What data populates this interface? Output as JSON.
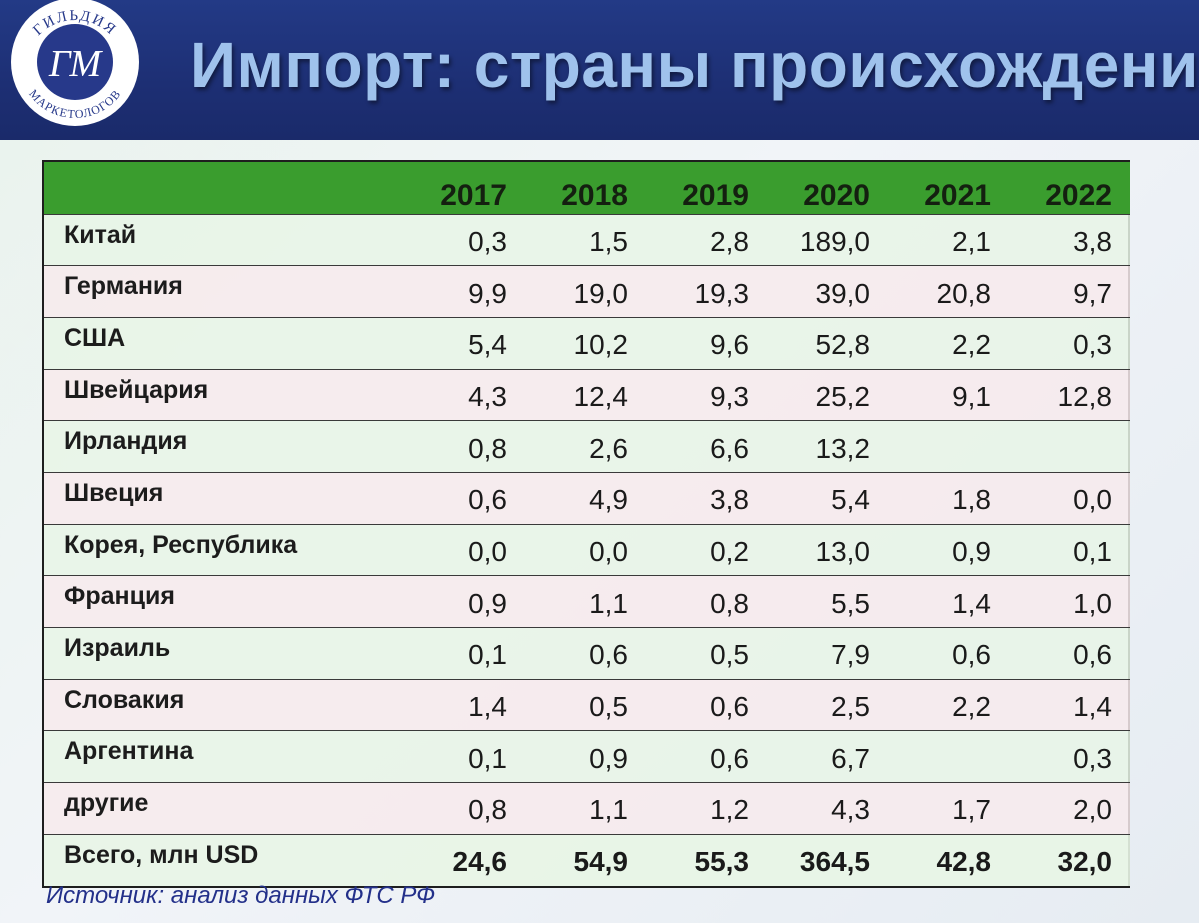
{
  "title": "Импорт: страны происхождения",
  "logo": {
    "arc_top": "ГИЛЬДИЯ",
    "arc_bottom": "МАРКЕТОЛОГОВ",
    "monogram": "ГМ"
  },
  "table": {
    "years": [
      "2017",
      "2018",
      "2019",
      "2020",
      "2021",
      "2022"
    ],
    "rows": [
      {
        "country": "Китай",
        "values": [
          "0,3",
          "1,5",
          "2,8",
          "189,0",
          "2,1",
          "3,8"
        ]
      },
      {
        "country": "Германия",
        "values": [
          "9,9",
          "19,0",
          "19,3",
          "39,0",
          "20,8",
          "9,7"
        ]
      },
      {
        "country": "США",
        "values": [
          "5,4",
          "10,2",
          "9,6",
          "52,8",
          "2,2",
          "0,3"
        ]
      },
      {
        "country": "Швейцария",
        "values": [
          "4,3",
          "12,4",
          "9,3",
          "25,2",
          "9,1",
          "12,8"
        ]
      },
      {
        "country": "Ирландия",
        "values": [
          "0,8",
          "2,6",
          "6,6",
          "13,2",
          "",
          ""
        ]
      },
      {
        "country": "Швеция",
        "values": [
          "0,6",
          "4,9",
          "3,8",
          "5,4",
          "1,8",
          "0,0"
        ]
      },
      {
        "country": "Корея, Республика",
        "values": [
          "0,0",
          "0,0",
          "0,2",
          "13,0",
          "0,9",
          "0,1"
        ]
      },
      {
        "country": "Франция",
        "values": [
          "0,9",
          "1,1",
          "0,8",
          "5,5",
          "1,4",
          "1,0"
        ]
      },
      {
        "country": "Израиль",
        "values": [
          "0,1",
          "0,6",
          "0,5",
          "7,9",
          "0,6",
          "0,6"
        ]
      },
      {
        "country": "Словакия",
        "values": [
          "1,4",
          "0,5",
          "0,6",
          "2,5",
          "2,2",
          "1,4"
        ]
      },
      {
        "country": "Аргентина",
        "values": [
          "0,1",
          "0,9",
          "0,6",
          "6,7",
          "",
          "0,3"
        ]
      },
      {
        "country": "другие",
        "values": [
          "0,8",
          "1,1",
          "1,2",
          "4,3",
          "1,7",
          "2,0"
        ]
      }
    ],
    "total": {
      "label": "Всего, млн USD",
      "values": [
        "24,6",
        "54,9",
        "55,3",
        "364,5",
        "42,8",
        "32,0"
      ]
    }
  },
  "source": "Источник: анализ данных ФТС РФ",
  "colors": {
    "header_bg": "#1d2f74",
    "title": "#9fc2ec",
    "table_header": "#3a9d2e",
    "source_text": "#23308a"
  }
}
